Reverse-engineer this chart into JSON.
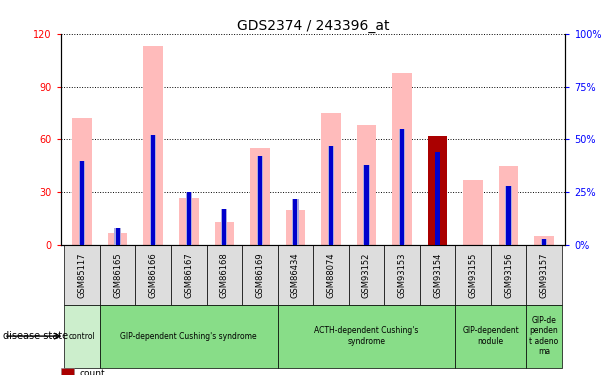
{
  "title": "GDS2374 / 243396_at",
  "samples": [
    "GSM85117",
    "GSM86165",
    "GSM86166",
    "GSM86167",
    "GSM86168",
    "GSM86169",
    "GSM86434",
    "GSM88074",
    "GSM93152",
    "GSM93153",
    "GSM93154",
    "GSM93155",
    "GSM93156",
    "GSM93157"
  ],
  "value_absent": [
    72,
    7,
    113,
    27,
    13,
    55,
    20,
    75,
    68,
    98,
    0,
    37,
    45,
    5
  ],
  "rank_absent": [
    40,
    8,
    52,
    25,
    17,
    42,
    22,
    47,
    38,
    55,
    0,
    0,
    28,
    3
  ],
  "count_value": [
    0,
    0,
    0,
    0,
    0,
    0,
    0,
    0,
    0,
    0,
    62,
    0,
    0,
    0
  ],
  "percentile_rank": [
    40,
    8,
    52,
    25,
    17,
    42,
    22,
    47,
    38,
    55,
    44,
    0,
    28,
    3
  ],
  "disease_groups": [
    {
      "label": "control",
      "start": 0,
      "end": 1
    },
    {
      "label": "GIP-dependent Cushing's syndrome",
      "start": 1,
      "end": 6
    },
    {
      "label": "ACTH-dependent Cushing's\nsyndrome",
      "start": 6,
      "end": 11
    },
    {
      "label": "GIP-dependent\nnodule",
      "start": 11,
      "end": 13
    },
    {
      "label": "GIP-de\npenden\nt adeno\nma",
      "start": 13,
      "end": 14
    }
  ],
  "ylim_left": [
    0,
    120
  ],
  "ylim_right": [
    0,
    100
  ],
  "yticks_left": [
    0,
    30,
    60,
    90,
    120
  ],
  "yticks_right": [
    0,
    25,
    50,
    75,
    100
  ],
  "ytick_labels_left": [
    "0",
    "30",
    "60",
    "90",
    "120"
  ],
  "ytick_labels_right": [
    "0%",
    "25%",
    "50%",
    "75%",
    "100%"
  ],
  "color_value_absent": "#ffbbbb",
  "color_rank_absent": "#aaaadd",
  "color_count": "#aa0000",
  "color_percentile": "#0000cc",
  "title_fontsize": 10,
  "tick_fontsize": 7,
  "disease_color_light": "#cceecc",
  "disease_color_green": "#88dd88",
  "sample_bg_color": "#dddddd"
}
